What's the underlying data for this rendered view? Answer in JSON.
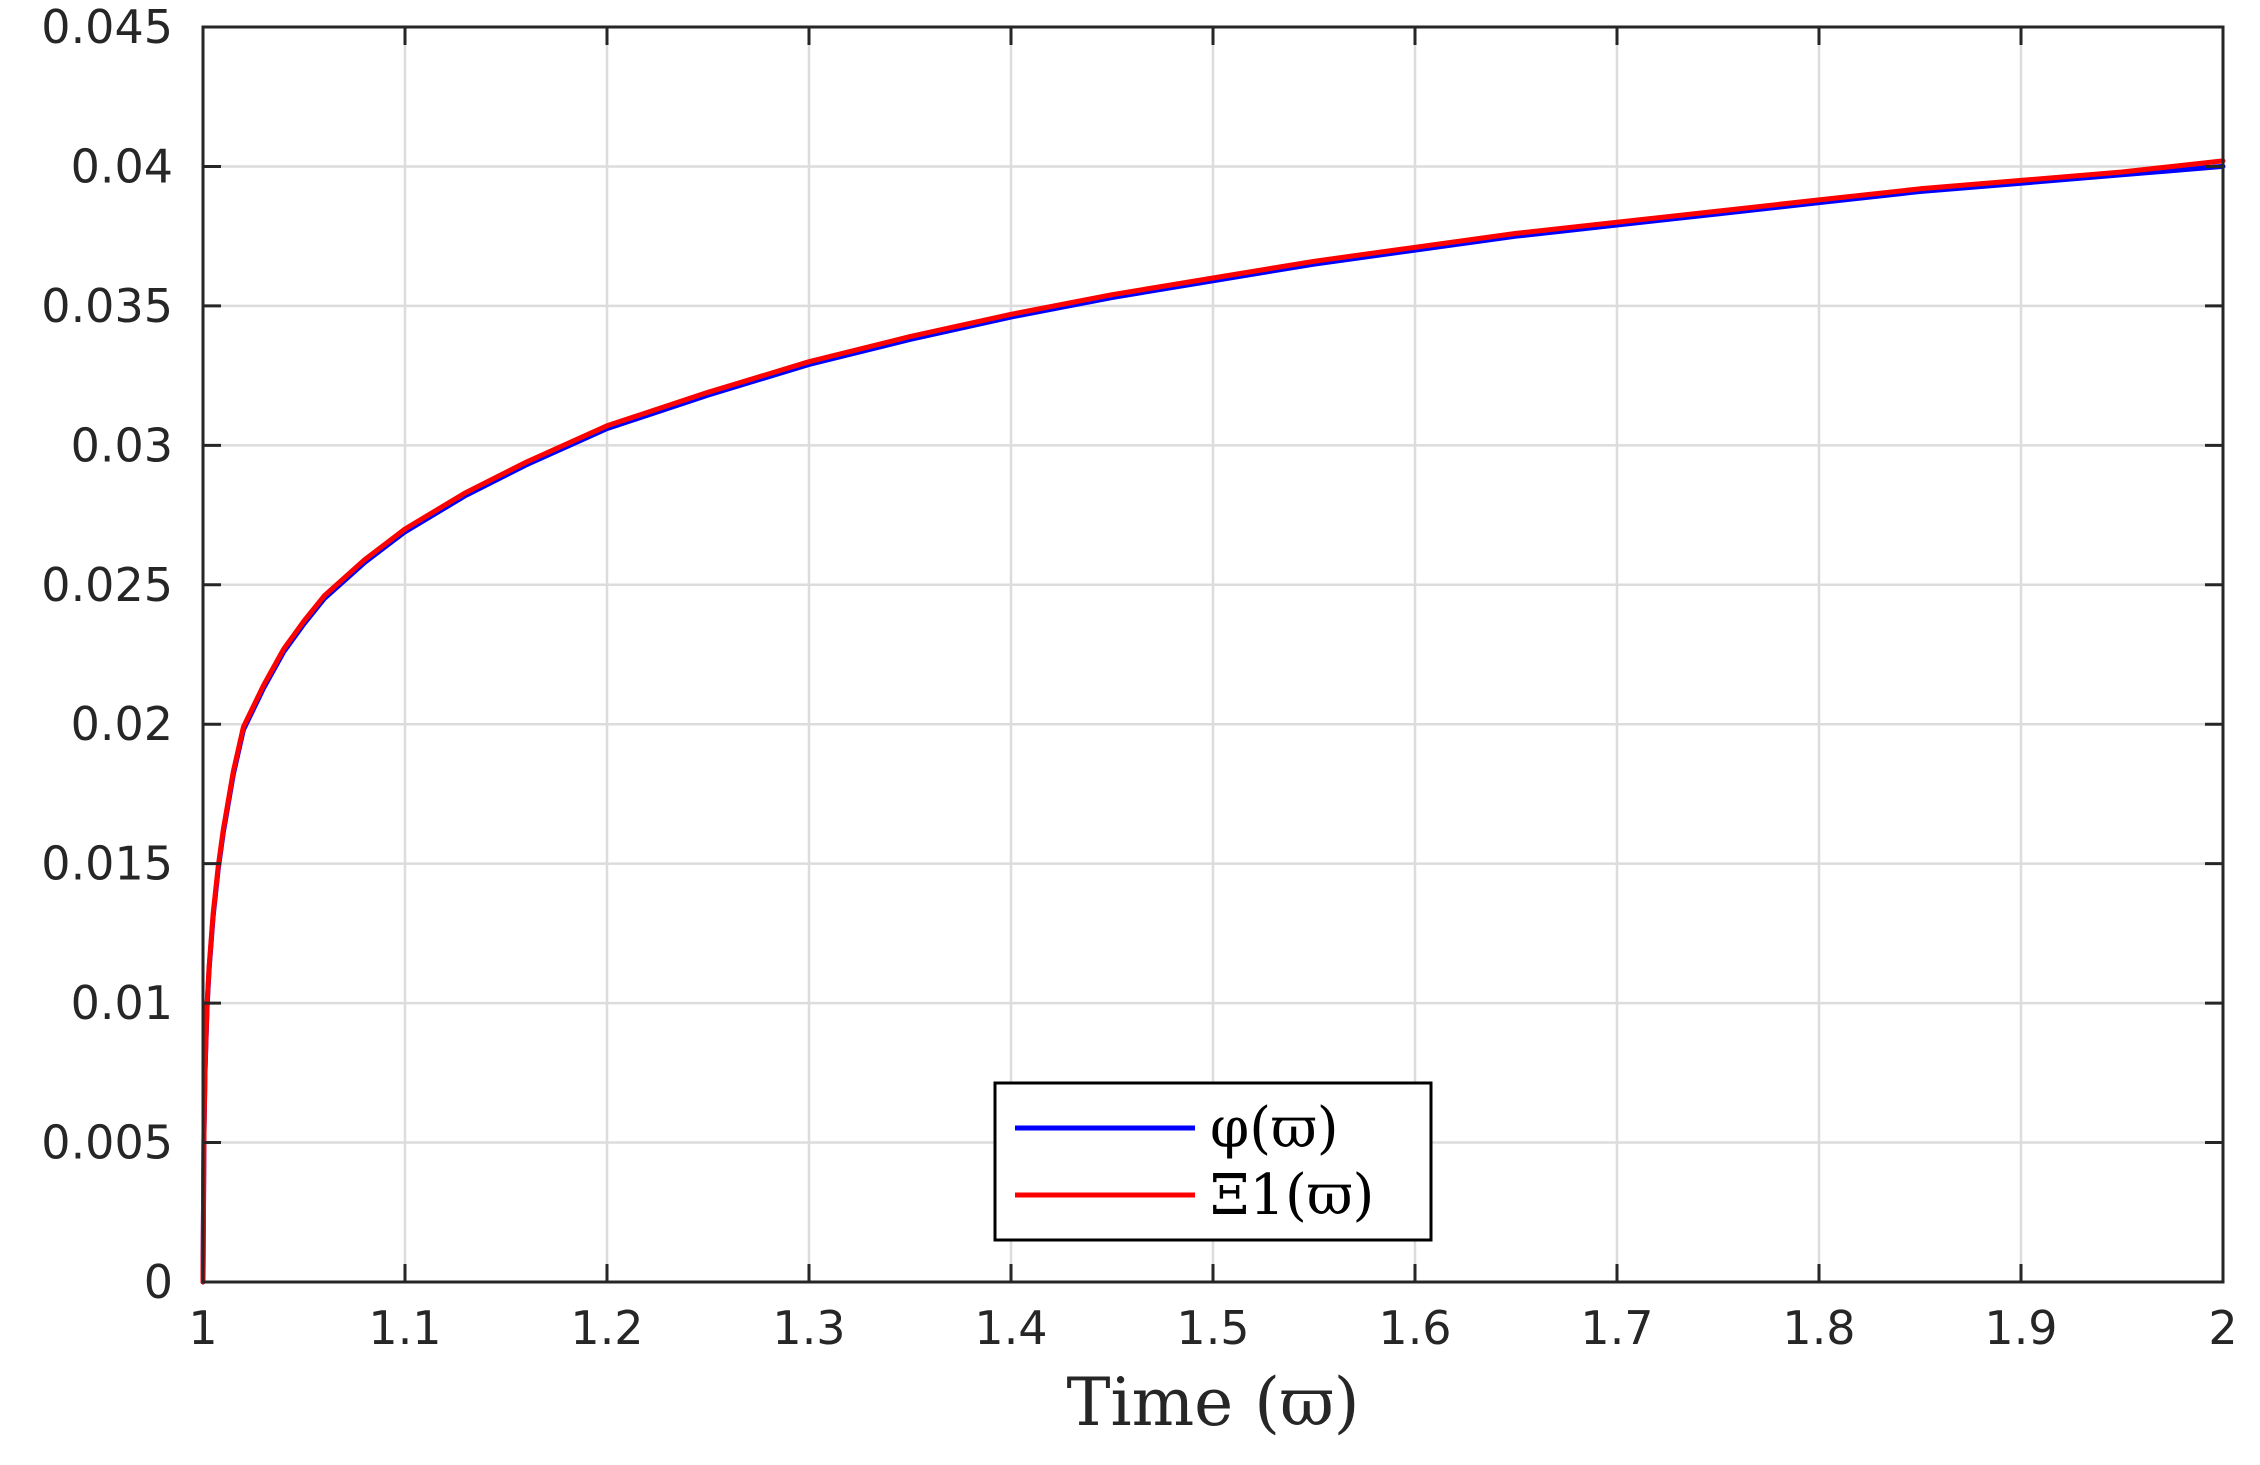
{
  "chart_data": {
    "type": "line",
    "title": "",
    "xlabel": "Time (ϖ)",
    "ylabel": "",
    "xlim": [
      1,
      2
    ],
    "ylim": [
      0,
      0.045
    ],
    "xticks": [
      1,
      1.1,
      1.2,
      1.3,
      1.4,
      1.5,
      1.6,
      1.7,
      1.8,
      1.9,
      2
    ],
    "xtick_labels": [
      "1",
      "1.1",
      "1.2",
      "1.3",
      "1.4",
      "1.5",
      "1.6",
      "1.7",
      "1.8",
      "1.9",
      "2"
    ],
    "yticks": [
      0,
      0.005,
      0.01,
      0.015,
      0.02,
      0.025,
      0.03,
      0.035,
      0.04,
      0.045
    ],
    "ytick_labels": [
      "0",
      "0.005",
      "0.01",
      "0.015",
      "0.02",
      "0.025",
      "0.03",
      "0.035",
      "0.04",
      "0.045"
    ],
    "grid": true,
    "legend_position": "bottom-center",
    "series": [
      {
        "name": "φ(ϖ)",
        "color": "#0000ff",
        "x": [
          1.0,
          1.0005,
          1.001,
          1.002,
          1.003,
          1.005,
          1.0075,
          1.01,
          1.015,
          1.02,
          1.03,
          1.04,
          1.05,
          1.06,
          1.08,
          1.1,
          1.13,
          1.16,
          1.2,
          1.25,
          1.3,
          1.35,
          1.4,
          1.45,
          1.5,
          1.55,
          1.6,
          1.65,
          1.7,
          1.75,
          1.8,
          1.85,
          1.9,
          1.95,
          2.0
        ],
        "y": [
          0.0,
          0.0053,
          0.0075,
          0.0098,
          0.0112,
          0.0131,
          0.0148,
          0.0161,
          0.0182,
          0.0198,
          0.0213,
          0.0226,
          0.0236,
          0.0245,
          0.0258,
          0.0269,
          0.0282,
          0.0293,
          0.0306,
          0.0318,
          0.0329,
          0.0338,
          0.0346,
          0.0353,
          0.0359,
          0.0365,
          0.037,
          0.0375,
          0.0379,
          0.0383,
          0.0387,
          0.0391,
          0.0394,
          0.0397,
          0.04
        ]
      },
      {
        "name": "Ξ1(ϖ)",
        "color": "#ff0000",
        "x": [
          1.0,
          1.0005,
          1.001,
          1.002,
          1.003,
          1.005,
          1.0075,
          1.01,
          1.015,
          1.02,
          1.03,
          1.04,
          1.05,
          1.06,
          1.08,
          1.1,
          1.13,
          1.16,
          1.2,
          1.25,
          1.3,
          1.35,
          1.4,
          1.45,
          1.5,
          1.55,
          1.6,
          1.65,
          1.7,
          1.75,
          1.8,
          1.85,
          1.9,
          1.95,
          2.0
        ],
        "y": [
          0.0,
          0.0054,
          0.0076,
          0.0099,
          0.0113,
          0.0132,
          0.0149,
          0.0162,
          0.0183,
          0.0199,
          0.0214,
          0.0227,
          0.0237,
          0.0246,
          0.0259,
          0.027,
          0.0283,
          0.0294,
          0.0307,
          0.0319,
          0.033,
          0.0339,
          0.0347,
          0.0354,
          0.036,
          0.0366,
          0.0371,
          0.0376,
          0.038,
          0.0384,
          0.0388,
          0.0392,
          0.0395,
          0.0398,
          0.0402
        ]
      }
    ]
  }
}
